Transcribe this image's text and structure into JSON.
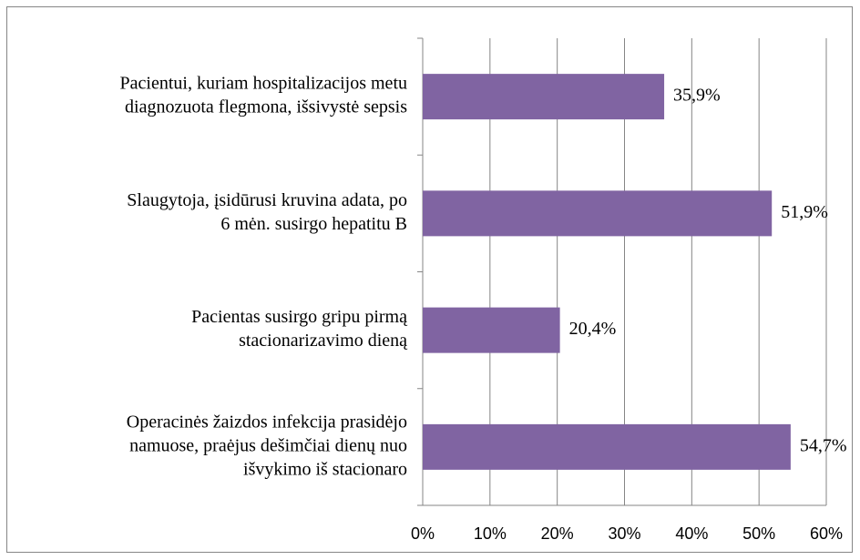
{
  "chart_data": {
    "type": "bar",
    "orientation": "horizontal",
    "categories": [
      [
        "Pacientui, kuriam hospitalizacijos metu",
        "diagnozuota flegmona, išsivystė sepsis"
      ],
      [
        "Slaugytoja, įsidūrusi kruvina adata, po",
        "6 mėn. susirgo hepatitu B"
      ],
      [
        "Pacientas susirgo gripu pirmą",
        "stacionarizavimo dieną"
      ],
      [
        "Operacinės žaizdos infekcija prasidėjo",
        "namuose, praėjus dešimčiai dienų nuo",
        "išvykimo iš stacionaro"
      ]
    ],
    "values": [
      35.9,
      51.9,
      20.4,
      54.7
    ],
    "value_labels": [
      "35,9%",
      "51,9%",
      "20,4%",
      "54,7%"
    ],
    "color": "#8064a2",
    "xlim": [
      0,
      60
    ],
    "xticks": [
      {
        "value": 0,
        "label": "0%"
      },
      {
        "value": 10,
        "label": "10%"
      },
      {
        "value": 20,
        "label": "20%"
      },
      {
        "value": 30,
        "label": "30%"
      },
      {
        "value": 40,
        "label": "40%"
      },
      {
        "value": 50,
        "label": "50%"
      },
      {
        "value": 60,
        "label": "60%"
      }
    ],
    "grid": true
  }
}
